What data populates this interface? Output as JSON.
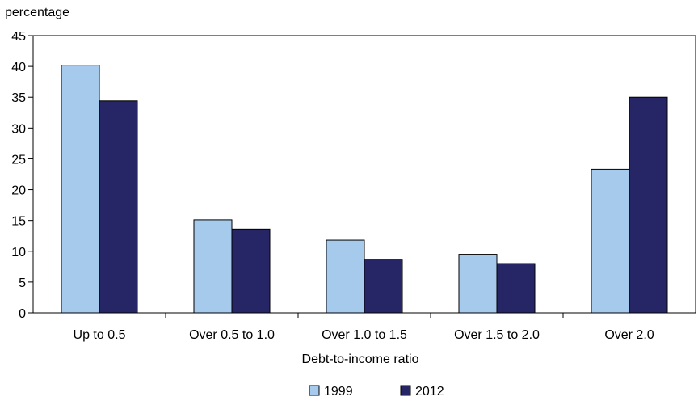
{
  "chart_data": {
    "type": "bar",
    "title": "",
    "ylabel": "percentage",
    "xlabel": "Debt-to-income ratio",
    "categories": [
      "Up to 0.5",
      "Over 0.5 to 1.0",
      "Over 1.0 to 1.5",
      "Over 1.5 to 2.0",
      "Over 2.0"
    ],
    "series": [
      {
        "name": "1999",
        "color": "#a6caec",
        "values": [
          40.2,
          15.1,
          11.8,
          9.5,
          23.3
        ]
      },
      {
        "name": "2012",
        "color": "#262666",
        "values": [
          34.4,
          13.6,
          8.7,
          8.0,
          35.0
        ]
      }
    ],
    "ylim": [
      0,
      45
    ],
    "yticks": [
      0,
      5,
      10,
      15,
      20,
      25,
      30,
      35,
      40,
      45
    ],
    "grid": false,
    "legend_position": "bottom-center"
  }
}
